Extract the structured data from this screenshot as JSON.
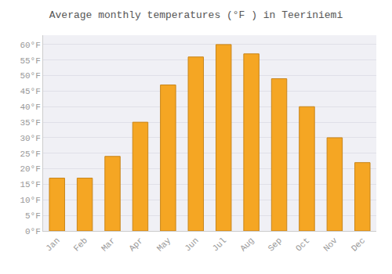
{
  "chart_data": {
    "type": "bar",
    "title": "Average monthly temperatures (°F ) in Teeriniemi",
    "categories": [
      "Jan",
      "Feb",
      "Mar",
      "Apr",
      "May",
      "Jun",
      "Jul",
      "Aug",
      "Sep",
      "Oct",
      "Nov",
      "Dec"
    ],
    "values": [
      17,
      17,
      24,
      35,
      47,
      56,
      60,
      57,
      49,
      40,
      30,
      22
    ],
    "color": "#F5A623",
    "ylim": [
      0,
      63
    ],
    "yticks": [
      {
        "value": 0,
        "label": "0°F"
      },
      {
        "value": 5,
        "label": "5°F"
      },
      {
        "value": 10,
        "label": "10°F"
      },
      {
        "value": 15,
        "label": "15°F"
      },
      {
        "value": 20,
        "label": "20°F"
      },
      {
        "value": 25,
        "label": "25°F"
      },
      {
        "value": 30,
        "label": "30°F"
      },
      {
        "value": 35,
        "label": "35°F"
      },
      {
        "value": 40,
        "label": "40°F"
      },
      {
        "value": 45,
        "label": "45°F"
      },
      {
        "value": 50,
        "label": "50°F"
      },
      {
        "value": 55,
        "label": "55°F"
      },
      {
        "value": 60,
        "label": "60°F"
      }
    ],
    "grid": true
  }
}
